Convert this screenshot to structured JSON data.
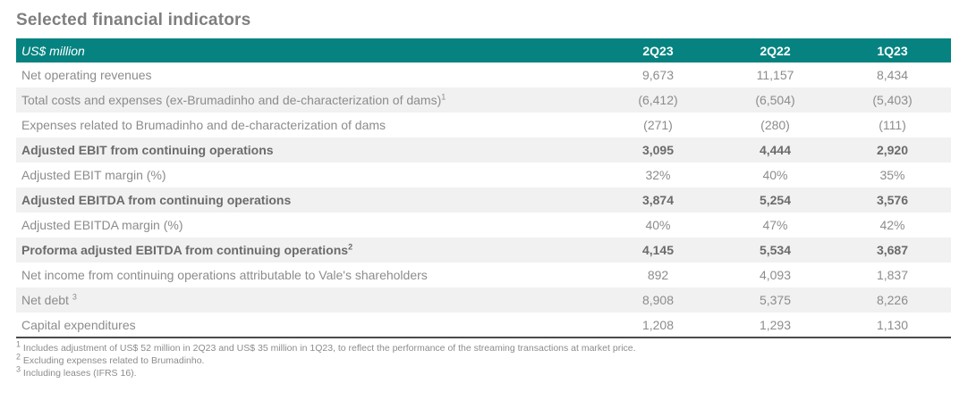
{
  "title": "Selected financial indicators",
  "table": {
    "unit_label": "US$ million",
    "columns": [
      "2Q23",
      "2Q22",
      "1Q23"
    ],
    "rows": [
      {
        "label": "Net operating revenues",
        "sup": "",
        "bold": false,
        "stripe": false,
        "values": [
          "9,673",
          "11,157",
          "8,434"
        ]
      },
      {
        "label": "Total costs and expenses (ex-Brumadinho and de-characterization of dams)",
        "sup": "1",
        "bold": false,
        "stripe": true,
        "values": [
          "(6,412)",
          "(6,504)",
          "(5,403)"
        ]
      },
      {
        "label": "Expenses related to Brumadinho and de-characterization of dams",
        "sup": "",
        "bold": false,
        "stripe": false,
        "values": [
          "(271)",
          "(280)",
          "(111)"
        ]
      },
      {
        "label": "Adjusted EBIT from continuing operations",
        "sup": "",
        "bold": true,
        "stripe": true,
        "values": [
          "3,095",
          "4,444",
          "2,920"
        ]
      },
      {
        "label": "Adjusted EBIT margin (%)",
        "sup": "",
        "bold": false,
        "stripe": false,
        "values": [
          "32%",
          "40%",
          "35%"
        ]
      },
      {
        "label": "Adjusted EBITDA from continuing operations",
        "sup": "",
        "bold": true,
        "stripe": true,
        "values": [
          "3,874",
          "5,254",
          "3,576"
        ]
      },
      {
        "label": "Adjusted EBITDA margin (%)",
        "sup": "",
        "bold": false,
        "stripe": false,
        "values": [
          "40%",
          "47%",
          "42%"
        ]
      },
      {
        "label": "Proforma adjusted EBITDA from continuing operations",
        "sup": "2",
        "bold": true,
        "stripe": true,
        "values": [
          "4,145",
          "5,534",
          "3,687"
        ]
      },
      {
        "label": "Net income from continuing operations attributable to Vale's shareholders",
        "sup": "",
        "bold": false,
        "stripe": false,
        "values": [
          "892",
          "4,093",
          "1,837"
        ]
      },
      {
        "label": "Net debt ",
        "sup": "3",
        "bold": false,
        "stripe": true,
        "values": [
          "8,908",
          "5,375",
          "8,226"
        ]
      },
      {
        "label": "Capital expenditures",
        "sup": "",
        "bold": false,
        "stripe": false,
        "values": [
          "1,208",
          "1,293",
          "1,130"
        ]
      }
    ]
  },
  "footnotes": [
    {
      "sup": "1",
      "text": "Includes adjustment of US$ 52 million in 2Q23 and US$ 35 million in 1Q23, to reflect the performance of the streaming transactions at market price."
    },
    {
      "sup": "2",
      "text": "Excluding expenses related to Brumadinho."
    },
    {
      "sup": "3",
      "text": "Including leases (IFRS 16)."
    }
  ],
  "colors": {
    "header_bg": "#068380",
    "stripe_bg": "#f1f1f1",
    "body_text": "#8c8c8c",
    "bold_text": "#6b6b6b",
    "title_text": "#7f7f7f",
    "bottom_border": "#4a4a4a"
  }
}
